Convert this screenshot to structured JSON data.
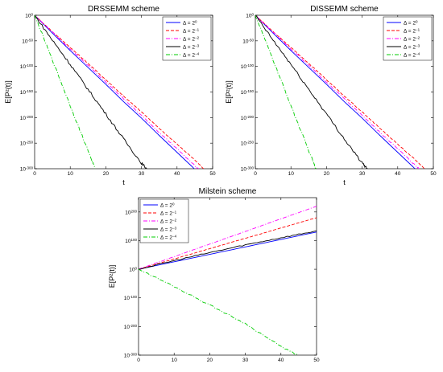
{
  "chart_data": [
    {
      "type": "line",
      "title": "DRSSEMM scheme",
      "xlabel": "t",
      "ylabel": "E[P²(t)]",
      "xlim": [
        0,
        50
      ],
      "ylim": [
        -300,
        0
      ],
      "y_scale": "log10",
      "xticks": [
        "0",
        "10",
        "20",
        "30",
        "40",
        "50"
      ],
      "yticks": [
        {
          "base": "10",
          "exp": "0"
        },
        {
          "base": "10",
          "exp": "-50"
        },
        {
          "base": "10",
          "exp": "-100"
        },
        {
          "base": "10",
          "exp": "-150"
        },
        {
          "base": "10",
          "exp": "-200"
        },
        {
          "base": "10",
          "exp": "-250"
        },
        {
          "base": "10",
          "exp": "-300"
        }
      ],
      "legend_position": "top-right",
      "series": [
        {
          "name": "Δ = 2",
          "exp": "0",
          "color": "#0000ff",
          "dash": "solid",
          "x": [
            0,
            5,
            10,
            15,
            20,
            25,
            30,
            35,
            40,
            45
          ],
          "y": [
            0,
            -35,
            -69,
            -102,
            -135,
            -169,
            -201,
            -235,
            -268,
            -301
          ],
          "noise": 0
        },
        {
          "name": "Δ = 2",
          "exp": "−1",
          "color": "#ff0000",
          "dash": "dashed",
          "x": [
            0,
            5,
            10,
            15,
            20,
            25,
            30,
            35,
            40,
            45,
            47.5
          ],
          "y": [
            0,
            -32,
            -63,
            -94,
            -126,
            -158,
            -189,
            -221,
            -252,
            -283,
            -300
          ],
          "noise": 1.5
        },
        {
          "name": "Δ = 2",
          "exp": "−2",
          "color": "#ff00ff",
          "dash": "dashdot",
          "x": [
            0,
            5,
            10,
            15,
            20,
            25,
            30,
            35,
            40,
            45,
            46
          ],
          "y": [
            0,
            -33,
            -66,
            -98,
            -131,
            -163,
            -196,
            -229,
            -261,
            -294,
            -300
          ],
          "noise": 2
        },
        {
          "name": "Δ = 2",
          "exp": "−3",
          "color": "#000000",
          "dash": "solid",
          "x": [
            0,
            5,
            10,
            15,
            20,
            25,
            30,
            31.5
          ],
          "y": [
            0,
            -49,
            -96,
            -145,
            -193,
            -242,
            -289,
            -300
          ],
          "noise": 5
        },
        {
          "name": "Δ = 2",
          "exp": "−4",
          "color": "#00cc00",
          "dash": "dashdot",
          "x": [
            0,
            4,
            8,
            12,
            16,
            17
          ],
          "y": [
            0,
            -70,
            -141,
            -212,
            -282,
            -300
          ],
          "noise": 4
        }
      ]
    },
    {
      "type": "line",
      "title": "DISSEMM scheme",
      "xlabel": "t",
      "ylabel": "E[P²(t)]",
      "xlim": [
        0,
        50
      ],
      "ylim": [
        -300,
        0
      ],
      "y_scale": "log10",
      "xticks": [
        "0",
        "10",
        "20",
        "30",
        "40",
        "50"
      ],
      "yticks": [
        {
          "base": "10",
          "exp": "0"
        },
        {
          "base": "10",
          "exp": "-50"
        },
        {
          "base": "10",
          "exp": "-100"
        },
        {
          "base": "10",
          "exp": "-150"
        },
        {
          "base": "10",
          "exp": "-200"
        },
        {
          "base": "10",
          "exp": "-250"
        },
        {
          "base": "10",
          "exp": "-300"
        }
      ],
      "legend_position": "top-right",
      "series": [
        {
          "name": "Δ = 2",
          "exp": "0",
          "color": "#0000ff",
          "dash": "solid",
          "x": [
            0,
            5,
            10,
            15,
            20,
            25,
            30,
            35,
            40,
            45
          ],
          "y": [
            0,
            -35,
            -69,
            -102,
            -135,
            -169,
            -201,
            -235,
            -268,
            -301
          ],
          "noise": 0
        },
        {
          "name": "Δ = 2",
          "exp": "−1",
          "color": "#ff0000",
          "dash": "dashed",
          "x": [
            0,
            5,
            10,
            15,
            20,
            25,
            30,
            35,
            40,
            45,
            47.5
          ],
          "y": [
            0,
            -32,
            -63,
            -94,
            -126,
            -158,
            -189,
            -221,
            -252,
            -283,
            -300
          ],
          "noise": 1.5
        },
        {
          "name": "Δ = 2",
          "exp": "−2",
          "color": "#ff00ff",
          "dash": "dashdot",
          "x": [
            0,
            5,
            10,
            15,
            20,
            25,
            30,
            35,
            40,
            45,
            46
          ],
          "y": [
            0,
            -33,
            -66,
            -98,
            -131,
            -163,
            -196,
            -229,
            -261,
            -294,
            -300
          ],
          "noise": 2
        },
        {
          "name": "Δ = 2",
          "exp": "−3",
          "color": "#000000",
          "dash": "solid",
          "x": [
            0,
            5,
            10,
            15,
            20,
            25,
            30,
            31.5
          ],
          "y": [
            0,
            -49,
            -96,
            -145,
            -193,
            -242,
            -289,
            -300
          ],
          "noise": 5
        },
        {
          "name": "Δ = 2",
          "exp": "−4",
          "color": "#00cc00",
          "dash": "dashdot",
          "x": [
            0,
            4,
            8,
            12,
            16,
            17
          ],
          "y": [
            0,
            -70,
            -141,
            -212,
            -282,
            -300
          ],
          "noise": 4
        }
      ]
    },
    {
      "type": "line",
      "title": "Milstein scheme",
      "xlabel": "",
      "ylabel": "E[P²(t)]",
      "xlim": [
        0,
        50
      ],
      "ylim": [
        -300,
        250
      ],
      "y_scale": "log10",
      "xticks": [
        "0",
        "10",
        "20",
        "30",
        "40",
        "50"
      ],
      "yticks": [
        {
          "base": "10",
          "exp": "200"
        },
        {
          "base": "10",
          "exp": "100"
        },
        {
          "base": "10",
          "exp": "0"
        },
        {
          "base": "10",
          "exp": "-100"
        },
        {
          "base": "10",
          "exp": "-200"
        },
        {
          "base": "10",
          "exp": "-300"
        }
      ],
      "legend_position": "top-left",
      "series": [
        {
          "name": "Δ = 2",
          "exp": "0",
          "color": "#0000ff",
          "dash": "solid",
          "x": [
            0,
            10,
            20,
            30,
            40,
            50
          ],
          "y": [
            0,
            26,
            52,
            78,
            104,
            130
          ],
          "noise": 0
        },
        {
          "name": "Δ = 2",
          "exp": "−1",
          "color": "#ff0000",
          "dash": "dashed",
          "x": [
            0,
            10,
            20,
            30,
            40,
            50
          ],
          "y": [
            0,
            36,
            72,
            108,
            144,
            180
          ],
          "noise": 0.8
        },
        {
          "name": "Δ = 2",
          "exp": "−2",
          "color": "#ff00ff",
          "dash": "dashdot",
          "x": [
            0,
            10,
            20,
            30,
            40,
            50
          ],
          "y": [
            0,
            44,
            88,
            132,
            176,
            220
          ],
          "noise": 0.8
        },
        {
          "name": "Δ = 2",
          "exp": "−3",
          "color": "#000000",
          "dash": "solid",
          "x": [
            0,
            10,
            20,
            30,
            40,
            50
          ],
          "y": [
            0,
            30,
            58,
            85,
            110,
            134
          ],
          "noise": 4
        },
        {
          "name": "Δ = 2",
          "exp": "−4",
          "color": "#00cc00",
          "dash": "dashdot",
          "x": [
            0,
            10,
            20,
            30,
            40,
            45
          ],
          "y": [
            0,
            -60,
            -125,
            -190,
            -270,
            -302
          ],
          "noise": 5
        }
      ]
    }
  ]
}
